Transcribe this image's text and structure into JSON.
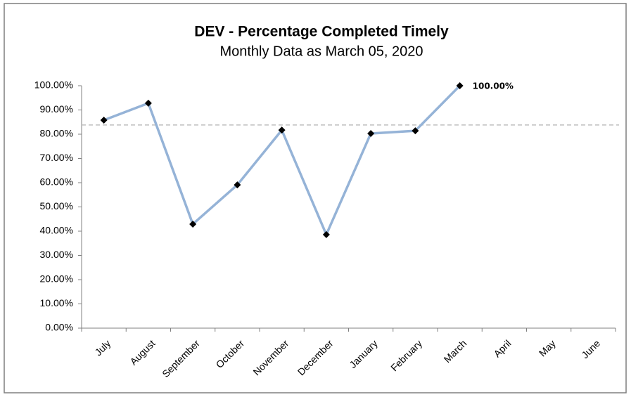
{
  "chart_data": {
    "type": "line",
    "title": "DEV - Percentage Completed Timely",
    "subtitle": "Monthly Data as March 05, 2020",
    "categories": [
      "July",
      "August",
      "September",
      "October",
      "November",
      "December",
      "January",
      "February",
      "March",
      "April",
      "May",
      "June"
    ],
    "series": [
      {
        "name": "DEV",
        "color": "#95b3d7",
        "marker_color": "#000000",
        "values": [
          85.8,
          92.8,
          42.9,
          59.1,
          81.7,
          38.6,
          80.3,
          81.4,
          100,
          null,
          null,
          null
        ],
        "value_labels": [
          null,
          null,
          null,
          null,
          null,
          null,
          null,
          null,
          "100.00%",
          null,
          null,
          null
        ]
      }
    ],
    "reference_line": {
      "value": 83.8,
      "color": "#bfbfbf"
    },
    "ylim": [
      0,
      100
    ],
    "yticks": [
      {
        "value": 0,
        "label": "0.00%"
      },
      {
        "value": 10,
        "label": "10.00%"
      },
      {
        "value": 20,
        "label": "20.00%"
      },
      {
        "value": 30,
        "label": "30.00%"
      },
      {
        "value": 40,
        "label": "40.00%"
      },
      {
        "value": 50,
        "label": "50.00%"
      },
      {
        "value": 60,
        "label": "60.00%"
      },
      {
        "value": 70,
        "label": "70.00%"
      },
      {
        "value": 80,
        "label": "80.00%"
      },
      {
        "value": 90,
        "label": "90.00%"
      },
      {
        "value": 100,
        "label": "100.00%"
      }
    ],
    "grid": false
  }
}
